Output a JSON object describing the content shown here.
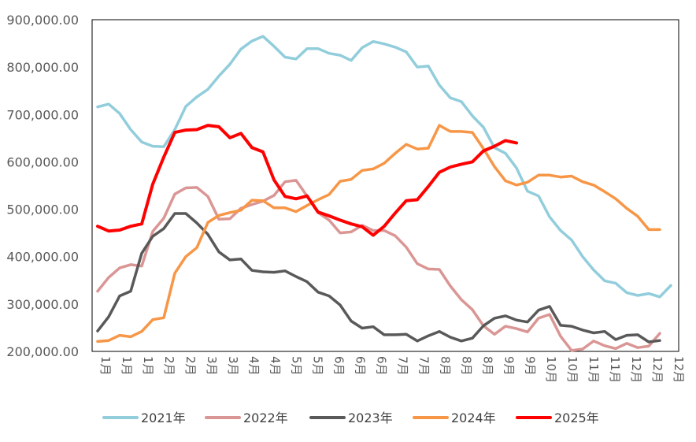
{
  "chart_data": {
    "type": "line",
    "title": "",
    "xlabel": "",
    "ylabel": "",
    "ylim": [
      200000,
      900000
    ],
    "yticks": [
      "200,000.00",
      "300,000.00",
      "400,000.00",
      "500,000.00",
      "600,000.00",
      "700,000.00",
      "800,000.00",
      "900,000.00"
    ],
    "xtick_labels": [
      "1月",
      "1月",
      "1月",
      "2月",
      "2月",
      "3月",
      "3月",
      "4月",
      "4月",
      "5月",
      "5月",
      "6月",
      "6月",
      "6月",
      "7月",
      "7月",
      "8月",
      "8月",
      "8月",
      "9月",
      "9月",
      "10月",
      "10月",
      "11月",
      "11月",
      "12月",
      "12月",
      "12月"
    ],
    "grid": false,
    "legend_position": "bottom",
    "series": [
      {
        "name": "2021年",
        "color": "#92cddc",
        "values": [
          716000,
          722000,
          702000,
          668000,
          642000,
          633000,
          632000,
          668000,
          717000,
          737000,
          753000,
          781000,
          806000,
          838000,
          855000,
          865000,
          844000,
          821000,
          817000,
          839000,
          839000,
          829000,
          825000,
          814000,
          841000,
          854000,
          849000,
          842000,
          832000,
          800000,
          802000,
          762000,
          735000,
          727000,
          697000,
          673000,
          630000,
          618000,
          587000,
          538000,
          528000,
          484000,
          455000,
          435000,
          400000,
          372000,
          349000,
          344000,
          324000,
          318000,
          322000,
          315000,
          339000
        ]
      },
      {
        "name": "2022年",
        "color": "#da9694",
        "values": [
          327000,
          356000,
          376000,
          383000,
          380000,
          453000,
          481000,
          532000,
          545000,
          546000,
          527000,
          479000,
          480000,
          502000,
          510000,
          517000,
          529000,
          558000,
          561000,
          528000,
          493000,
          477000,
          450000,
          452000,
          466000,
          455000,
          455000,
          444000,
          420000,
          385000,
          374000,
          373000,
          338000,
          309000,
          288000,
          254000,
          236000,
          253000,
          248000,
          241000,
          270000,
          278000,
          232000,
          202000,
          205000,
          222000,
          212000,
          206000,
          217000,
          208000,
          211000,
          238000
        ]
      },
      {
        "name": "2023年",
        "color": "#595959",
        "values": [
          243000,
          273000,
          317000,
          327000,
          407000,
          443000,
          459000,
          491000,
          491000,
          471000,
          447000,
          410000,
          393000,
          395000,
          371000,
          368000,
          367000,
          370000,
          358000,
          347000,
          325000,
          317000,
          298000,
          264000,
          249000,
          252000,
          235000,
          235000,
          236000,
          222000,
          233000,
          242000,
          230000,
          222000,
          228000,
          254000,
          270000,
          275000,
          266000,
          262000,
          287000,
          295000,
          255000,
          253000,
          245000,
          239000,
          242000,
          225000,
          234000,
          235000,
          220000,
          223000
        ]
      },
      {
        "name": "2024年",
        "color": "#f79646",
        "values": [
          221000,
          223000,
          234000,
          231000,
          242000,
          267000,
          271000,
          365000,
          400000,
          419000,
          472000,
          487000,
          493000,
          498000,
          519000,
          518000,
          503000,
          503000,
          495000,
          508000,
          520000,
          531000,
          559000,
          563000,
          582000,
          585000,
          597000,
          618000,
          637000,
          627000,
          629000,
          677000,
          664000,
          664000,
          662000,
          628000,
          590000,
          560000,
          551000,
          557000,
          572000,
          572000,
          568000,
          570000,
          558000,
          551000,
          537000,
          522000,
          502000,
          485000,
          457000,
          457000
        ]
      },
      {
        "name": "2025年",
        "color": "#ff0000",
        "values": [
          464000,
          454000,
          456000,
          464000,
          469000,
          553000,
          610000,
          662000,
          667000,
          668000,
          677000,
          674000,
          651000,
          660000,
          630000,
          621000,
          562000,
          527000,
          522000,
          528000,
          494000,
          486000,
          477000,
          469000,
          463000,
          445000,
          464000,
          492000,
          518000,
          520000,
          548000,
          578000,
          589000,
          595000,
          600000,
          623000,
          633000,
          645000,
          640000
        ]
      }
    ]
  }
}
